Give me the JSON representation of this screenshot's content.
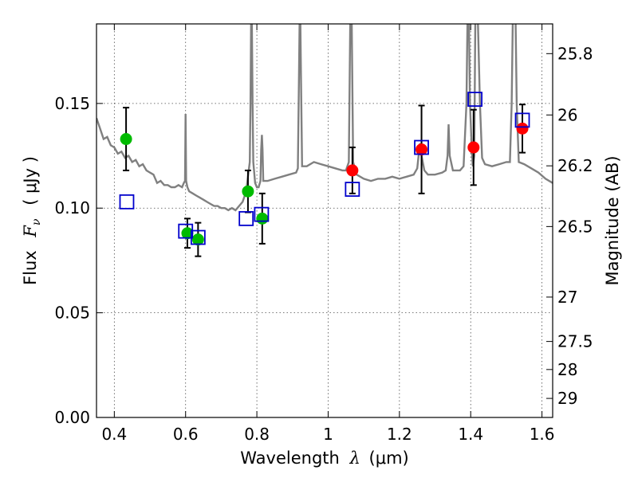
{
  "chart_data": {
    "type": "scatter",
    "xlabel": {
      "text": "Wavelength",
      "symbol": "λ",
      "unit": "(μm)"
    },
    "ylabel": {
      "text": "Flux",
      "symbol": "F",
      "subscript": "ν",
      "unit": "( μJy )"
    },
    "y2label": "Magnitude (AB)",
    "xlim": [
      0.35,
      1.63
    ],
    "ylim": [
      0.0,
      0.188
    ],
    "x_ticks": [
      0.4,
      0.6,
      0.8,
      1.0,
      1.2,
      1.4,
      1.6
    ],
    "x_tick_labels": [
      "0.4",
      "0.6",
      "0.8",
      "1",
      "1.2",
      "1.4",
      "1.6"
    ],
    "y_ticks": [
      0.0,
      0.05,
      0.1,
      0.15
    ],
    "y_tick_labels": [
      "0.00",
      "0.05",
      "0.10",
      "0.15"
    ],
    "y2_ticks": [
      {
        "label": "25.8",
        "flux": 0.1738
      },
      {
        "label": "26",
        "flux": 0.1445
      },
      {
        "label": "26.2",
        "flux": 0.1202
      },
      {
        "label": "26.5",
        "flux": 0.0912
      },
      {
        "label": "27",
        "flux": 0.0575
      },
      {
        "label": "27.5",
        "flux": 0.0363
      },
      {
        "label": "28",
        "flux": 0.0229
      },
      {
        "label": "29",
        "flux": 0.0091
      }
    ],
    "grid": true,
    "colors": {
      "model": "#808080",
      "green": "#00bb00",
      "red": "#ff0000",
      "square": "#0000cc",
      "errorbar": "#000000"
    },
    "model_sed": [
      [
        0.35,
        0.143
      ],
      [
        0.36,
        0.138
      ],
      [
        0.37,
        0.133
      ],
      [
        0.38,
        0.134
      ],
      [
        0.39,
        0.13
      ],
      [
        0.4,
        0.129
      ],
      [
        0.41,
        0.126
      ],
      [
        0.42,
        0.127
      ],
      [
        0.43,
        0.124
      ],
      [
        0.44,
        0.125
      ],
      [
        0.45,
        0.122
      ],
      [
        0.46,
        0.123
      ],
      [
        0.47,
        0.12
      ],
      [
        0.48,
        0.121
      ],
      [
        0.49,
        0.118
      ],
      [
        0.5,
        0.117
      ],
      [
        0.51,
        0.116
      ],
      [
        0.52,
        0.112
      ],
      [
        0.53,
        0.113
      ],
      [
        0.54,
        0.111
      ],
      [
        0.55,
        0.111
      ],
      [
        0.56,
        0.11
      ],
      [
        0.57,
        0.11
      ],
      [
        0.58,
        0.111
      ],
      [
        0.59,
        0.11
      ],
      [
        0.595,
        0.112
      ],
      [
        0.5985,
        0.113
      ],
      [
        0.6,
        0.145
      ],
      [
        0.6015,
        0.113
      ],
      [
        0.605,
        0.11
      ],
      [
        0.61,
        0.108
      ],
      [
        0.62,
        0.107
      ],
      [
        0.63,
        0.106
      ],
      [
        0.64,
        0.105
      ],
      [
        0.65,
        0.104
      ],
      [
        0.66,
        0.103
      ],
      [
        0.67,
        0.102
      ],
      [
        0.68,
        0.101
      ],
      [
        0.69,
        0.101
      ],
      [
        0.7,
        0.1
      ],
      [
        0.71,
        0.1
      ],
      [
        0.72,
        0.099
      ],
      [
        0.73,
        0.1
      ],
      [
        0.74,
        0.099
      ],
      [
        0.75,
        0.101
      ],
      [
        0.76,
        0.103
      ],
      [
        0.77,
        0.108
      ],
      [
        0.775,
        0.115
      ],
      [
        0.78,
        0.122
      ],
      [
        0.782,
        0.15
      ],
      [
        0.784,
        0.19
      ],
      [
        0.786,
        0.19
      ],
      [
        0.788,
        0.15
      ],
      [
        0.79,
        0.122
      ],
      [
        0.795,
        0.112
      ],
      [
        0.8,
        0.11
      ],
      [
        0.805,
        0.11
      ],
      [
        0.81,
        0.113
      ],
      [
        0.812,
        0.128
      ],
      [
        0.814,
        0.135
      ],
      [
        0.816,
        0.128
      ],
      [
        0.818,
        0.113
      ],
      [
        0.83,
        0.113
      ],
      [
        0.85,
        0.114
      ],
      [
        0.87,
        0.115
      ],
      [
        0.89,
        0.116
      ],
      [
        0.91,
        0.117
      ],
      [
        0.915,
        0.119
      ],
      [
        0.918,
        0.16
      ],
      [
        0.92,
        0.19
      ],
      [
        0.922,
        0.19
      ],
      [
        0.924,
        0.16
      ],
      [
        0.927,
        0.12
      ],
      [
        0.94,
        0.12
      ],
      [
        0.96,
        0.122
      ],
      [
        0.98,
        0.121
      ],
      [
        1.0,
        0.12
      ],
      [
        1.02,
        0.119
      ],
      [
        1.04,
        0.118
      ],
      [
        1.05,
        0.118
      ],
      [
        1.058,
        0.122
      ],
      [
        1.062,
        0.19
      ],
      [
        1.066,
        0.19
      ],
      [
        1.07,
        0.122
      ],
      [
        1.08,
        0.116
      ],
      [
        1.1,
        0.114
      ],
      [
        1.12,
        0.113
      ],
      [
        1.14,
        0.114
      ],
      [
        1.16,
        0.114
      ],
      [
        1.18,
        0.115
      ],
      [
        1.2,
        0.114
      ],
      [
        1.22,
        0.115
      ],
      [
        1.24,
        0.116
      ],
      [
        1.25,
        0.119
      ],
      [
        1.255,
        0.127
      ],
      [
        1.258,
        0.131
      ],
      [
        1.262,
        0.125
      ],
      [
        1.27,
        0.118
      ],
      [
        1.28,
        0.116
      ],
      [
        1.3,
        0.116
      ],
      [
        1.32,
        0.117
      ],
      [
        1.33,
        0.118
      ],
      [
        1.335,
        0.125
      ],
      [
        1.338,
        0.14
      ],
      [
        1.341,
        0.125
      ],
      [
        1.35,
        0.118
      ],
      [
        1.37,
        0.118
      ],
      [
        1.38,
        0.12
      ],
      [
        1.388,
        0.15
      ],
      [
        1.391,
        0.19
      ],
      [
        1.395,
        0.19
      ],
      [
        1.398,
        0.15
      ],
      [
        1.403,
        0.128
      ],
      [
        1.406,
        0.12
      ],
      [
        1.41,
        0.125
      ],
      [
        1.413,
        0.19
      ],
      [
        1.42,
        0.19
      ],
      [
        1.426,
        0.15
      ],
      [
        1.432,
        0.124
      ],
      [
        1.44,
        0.121
      ],
      [
        1.46,
        0.12
      ],
      [
        1.48,
        0.121
      ],
      [
        1.5,
        0.122
      ],
      [
        1.51,
        0.122
      ],
      [
        1.515,
        0.15
      ],
      [
        1.518,
        0.19
      ],
      [
        1.526,
        0.19
      ],
      [
        1.529,
        0.15
      ],
      [
        1.535,
        0.122
      ],
      [
        1.55,
        0.121
      ],
      [
        1.57,
        0.119
      ],
      [
        1.59,
        0.117
      ],
      [
        1.61,
        0.114
      ],
      [
        1.63,
        0.112
      ]
    ],
    "points_green": [
      {
        "x": 0.433,
        "y": 0.133,
        "err": 0.015
      },
      {
        "x": 0.605,
        "y": 0.088,
        "err": 0.007
      },
      {
        "x": 0.635,
        "y": 0.085,
        "err": 0.008
      },
      {
        "x": 0.775,
        "y": 0.108,
        "err": 0.01
      },
      {
        "x": 0.815,
        "y": 0.095,
        "err": 0.012
      }
    ],
    "points_red": [
      {
        "x": 1.068,
        "y": 0.118,
        "err": 0.011
      },
      {
        "x": 1.262,
        "y": 0.128,
        "err": 0.021
      },
      {
        "x": 1.408,
        "y": 0.129,
        "err": 0.018
      },
      {
        "x": 1.545,
        "y": 0.138,
        "err": 0.0115
      }
    ],
    "points_square": [
      {
        "x": 0.435,
        "y": 0.103
      },
      {
        "x": 0.6,
        "y": 0.089
      },
      {
        "x": 0.635,
        "y": 0.086
      },
      {
        "x": 0.77,
        "y": 0.095
      },
      {
        "x": 0.813,
        "y": 0.097
      },
      {
        "x": 1.068,
        "y": 0.109
      },
      {
        "x": 1.262,
        "y": 0.129
      },
      {
        "x": 1.412,
        "y": 0.152
      },
      {
        "x": 1.545,
        "y": 0.142
      }
    ]
  }
}
